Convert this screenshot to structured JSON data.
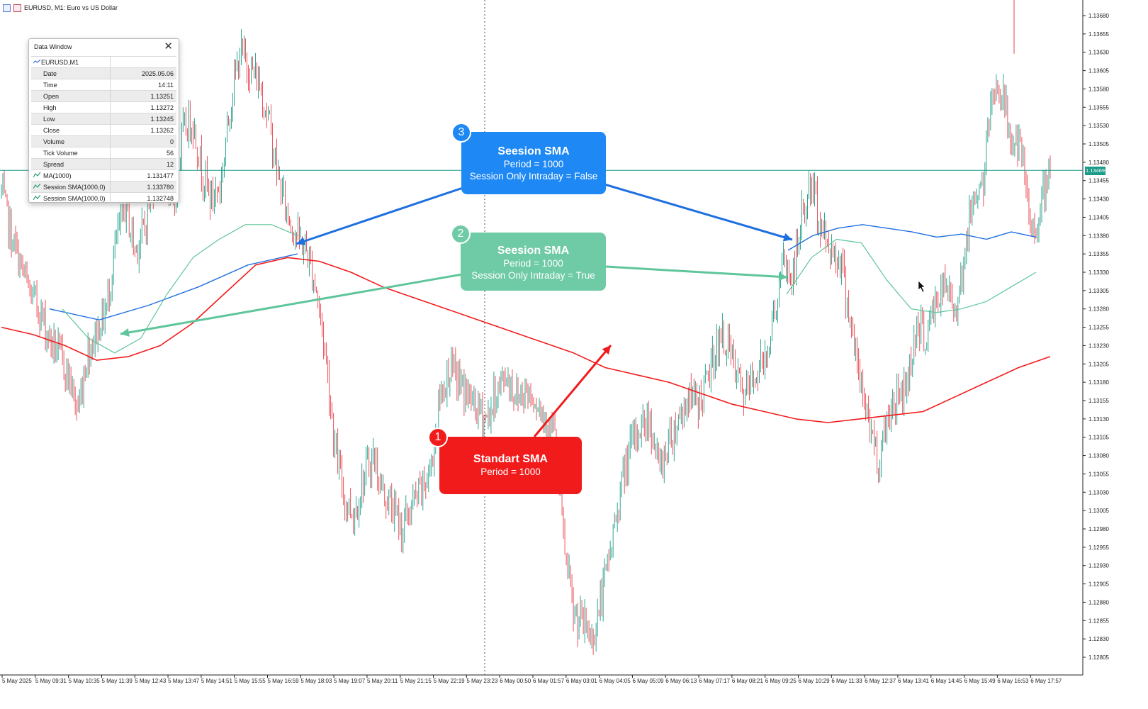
{
  "window": {
    "title": "EURUSD, M1:  Euro vs US Dollar"
  },
  "data_window": {
    "title": "Data Window",
    "symbol": "EURUSD,M1",
    "rows": [
      {
        "label": "Date",
        "value": "2025.05.06"
      },
      {
        "label": "Time",
        "value": "14:11"
      },
      {
        "label": "Open",
        "value": "1.13251"
      },
      {
        "label": "High",
        "value": "1.13272"
      },
      {
        "label": "Low",
        "value": "1.13245"
      },
      {
        "label": "Close",
        "value": "1.13262"
      },
      {
        "label": "Volume",
        "value": "0"
      },
      {
        "label": "Tick Volume",
        "value": "56"
      },
      {
        "label": "Spread",
        "value": "12"
      },
      {
        "label": "MA(1000)",
        "value": "1.131477"
      },
      {
        "label": "Session SMA(1000,0)",
        "value": "1.133780"
      },
      {
        "label": "Session SMA(1000,0)",
        "value": "1.132748"
      }
    ]
  },
  "callouts": {
    "c3": {
      "badge": "3",
      "title": "Seesion SMA",
      "line1": "Period = 1000",
      "line2": "Session Only Intraday = False",
      "color": "#1e88f5"
    },
    "c2": {
      "badge": "2",
      "title": "Seesion SMA",
      "line1": "Period = 1000",
      "line2": "Session Only Intraday = True",
      "color": "#6fcaa6"
    },
    "c1": {
      "badge": "1",
      "title": "Standart SMA",
      "line1": "Period = 1000",
      "color": "#f21b1b"
    }
  },
  "current_price": "1.13469",
  "colors": {
    "up_candle": "#1a9b87",
    "down_candle": "#e8404a",
    "sma_standard": "#f21b1b",
    "sma_session_false": "#1e6fe0",
    "sma_session_true": "#5fc59a",
    "price_line": "#1a9b87"
  },
  "chart_data": {
    "type": "line",
    "symbol": "EURUSD",
    "timeframe": "M1",
    "y_ticks": [
      "1.13680",
      "1.13655",
      "1.13630",
      "1.13605",
      "1.13580",
      "1.13555",
      "1.13530",
      "1.13505",
      "1.13480",
      "1.13455",
      "1.13430",
      "1.13405",
      "1.13380",
      "1.13355",
      "1.13330",
      "1.13305",
      "1.13280",
      "1.13255",
      "1.13230",
      "1.13205",
      "1.13180",
      "1.13155",
      "1.13130",
      "1.13105",
      "1.13080",
      "1.13055",
      "1.13030",
      "1.13005",
      "1.12980",
      "1.12955",
      "1.12930",
      "1.12905",
      "1.12880",
      "1.12855",
      "1.12830",
      "1.12805"
    ],
    "ylim": [
      1.12795,
      1.13695
    ],
    "x_ticks": [
      "5 May 2025",
      "5 May 09:31",
      "5 May 10:35",
      "5 May 11:39",
      "5 May 12:43",
      "5 May 13:47",
      "5 May 14:51",
      "5 May 15:55",
      "5 May 16:59",
      "5 May 18:03",
      "5 May 19:07",
      "5 May 20:11",
      "5 May 21:15",
      "5 May 22:19",
      "5 May 23:23",
      "6 May 00:50",
      "6 May 01:57",
      "6 May 03:01",
      "6 May 04:05",
      "6 May 05:09",
      "6 May 06:13",
      "6 May 07:17",
      "6 May 08:21",
      "6 May 09:25",
      "6 May 10:29",
      "6 May 11:33",
      "6 May 12:37",
      "6 May 13:41",
      "6 May 14:45",
      "6 May 15:49",
      "6 May 16:53",
      "6 May 17:57"
    ],
    "price_path": [
      1.1344,
      1.1338,
      1.1334,
      1.133,
      1.1328,
      1.1324,
      1.1322,
      1.1319,
      1.1314,
      1.1322,
      1.1325,
      1.1328,
      1.1337,
      1.1342,
      1.1336,
      1.1339,
      1.1346,
      1.1348,
      1.1341,
      1.1352,
      1.1354,
      1.1347,
      1.1343,
      1.1345,
      1.1356,
      1.1363,
      1.1361,
      1.1359,
      1.1354,
      1.1346,
      1.1341,
      1.1338,
      1.1336,
      1.1331,
      1.1322,
      1.1309,
      1.1302,
      1.13,
      1.1305,
      1.1308,
      1.1303,
      1.1301,
      1.1298,
      1.1301,
      1.1303,
      1.1306,
      1.1316,
      1.132,
      1.1318,
      1.1316,
      1.1314,
      1.1313,
      1.1317,
      1.1319,
      1.1316,
      1.1317,
      1.1316,
      1.1313,
      1.1311,
      1.1296,
      1.1286,
      1.1285,
      1.1283,
      1.1289,
      1.1296,
      1.1304,
      1.1309,
      1.1312,
      1.1313,
      1.1306,
      1.131,
      1.1313,
      1.1316,
      1.1315,
      1.1318,
      1.1323,
      1.1324,
      1.1319,
      1.1316,
      1.1319,
      1.1321,
      1.1327,
      1.1334,
      1.1332,
      1.1341,
      1.1345,
      1.1339,
      1.1336,
      1.1335,
      1.1327,
      1.1318,
      1.1313,
      1.1307,
      1.1314,
      1.1316,
      1.1318,
      1.1326,
      1.1324,
      1.1329,
      1.1331,
      1.1328,
      1.1335,
      1.1344,
      1.1345,
      1.1359,
      1.1357,
      1.1351,
      1.1349,
      1.1338,
      1.1342,
      1.1346
    ],
    "series": [
      {
        "values": [
          1.13255,
          1.13245,
          1.1323,
          1.1321,
          1.13215,
          1.1323,
          1.1326,
          1.133,
          1.1334,
          1.1335,
          1.13345,
          1.1333,
          1.1331,
          1.13295,
          1.1328,
          1.13265,
          1.1325,
          1.13235,
          1.1322,
          1.132,
          1.1319,
          1.1318,
          1.13165,
          1.1315,
          1.1314,
          1.1313,
          1.13125,
          1.1313,
          1.13135,
          1.1314,
          1.1316,
          1.1318,
          1.132,
          1.13215
        ]
      },
      {
        "values": [
          1.1328,
          1.13275,
          1.1329,
          1.133,
          1.1332,
          1.1334,
          1.1336,
          1.1337,
          1.1338,
          1.13385,
          1.13395,
          1.1339,
          1.13385,
          1.1338,
          1.13375,
          1.13385,
          1.1338
        ]
      },
      {
        "values": [
          1.1324,
          1.1324,
          1.1325,
          1.133,
          1.1334,
          1.1337,
          1.1338,
          1.1337,
          1.1332,
          1.1327,
          1.13265,
          1.1328,
          1.1328,
          1.1329,
          1.1331,
          1.1333
        ]
      }
    ],
    "current_price": 1.13469,
    "grid": false
  }
}
